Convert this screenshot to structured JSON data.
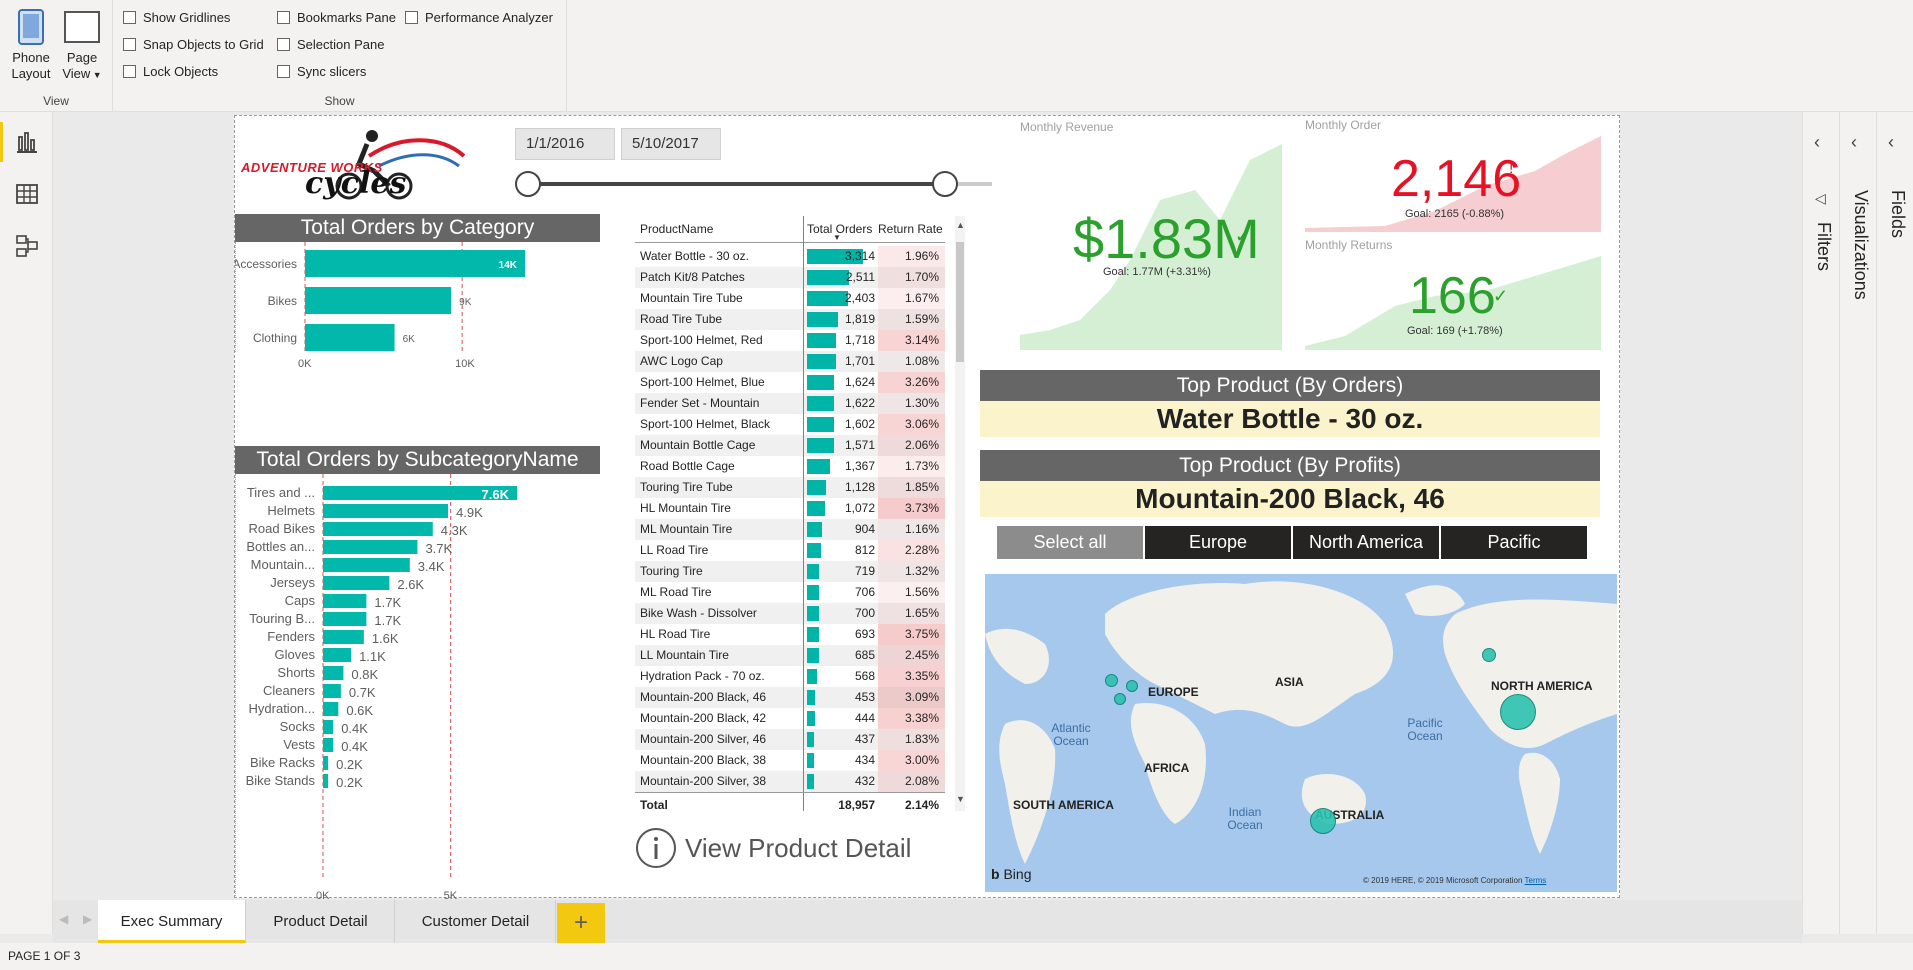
{
  "ribbon": {
    "view_group": {
      "label": "View",
      "phone_layout": "Phone\nLayout",
      "page_view": "Page\nView"
    },
    "show_group": {
      "label": "Show",
      "checkboxes": [
        "Show Gridlines",
        "Snap Objects to Grid",
        "Lock Objects",
        "Bookmarks Pane",
        "Selection Pane",
        "Sync slicers",
        "Performance Analyzer"
      ]
    }
  },
  "report": {
    "logo_text": {
      "line1": "ADVENTURE WORKS",
      "line2": "cycles"
    },
    "date_slicer": {
      "start": "1/1/2016",
      "end": "5/10/2017"
    },
    "category_chart": {
      "title": "Total Orders by Category",
      "categories": [
        "Accessories",
        "Bikes",
        "Clothing"
      ],
      "labels": [
        "14K",
        "9K",
        "6K"
      ],
      "values": [
        14000,
        9300,
        5700
      ],
      "ticks": [
        "0K",
        "10K"
      ],
      "ref_lines": [
        0,
        10000
      ],
      "xmax": 14000
    },
    "subcategory_chart": {
      "title": "Total Orders by SubcategoryName",
      "categories": [
        "Tires and ...",
        "Helmets",
        "Road Bikes",
        "Bottles an...",
        "Mountain...",
        "Jerseys",
        "Caps",
        "Touring B...",
        "Fenders",
        "Gloves",
        "Shorts",
        "Cleaners",
        "Hydration...",
        "Socks",
        "Vests",
        "Bike Racks",
        "Bike Stands"
      ],
      "labels": [
        "7.6K",
        "4.9K",
        "4.3K",
        "3.7K",
        "3.4K",
        "2.6K",
        "1.7K",
        "1.7K",
        "1.6K",
        "1.1K",
        "0.8K",
        "0.7K",
        "0.6K",
        "0.4K",
        "0.4K",
        "0.2K",
        "0.2K"
      ],
      "values": [
        7600,
        4900,
        4300,
        3700,
        3400,
        2600,
        1700,
        1700,
        1600,
        1100,
        800,
        700,
        600,
        400,
        400,
        200,
        200
      ],
      "ticks": [
        "0K",
        "5K"
      ],
      "xmax": 7600
    },
    "product_table": {
      "headers": [
        "ProductName",
        "Total Orders",
        "Return Rate"
      ],
      "rows": [
        {
          "name": "Water Bottle - 30 oz.",
          "orders": "3,314",
          "rate": "1.96%",
          "o": 3314,
          "r": 1.96
        },
        {
          "name": "Patch Kit/8 Patches",
          "orders": "2,511",
          "rate": "1.70%",
          "o": 2511,
          "r": 1.7
        },
        {
          "name": "Mountain Tire Tube",
          "orders": "2,403",
          "rate": "1.67%",
          "o": 2403,
          "r": 1.67
        },
        {
          "name": "Road Tire Tube",
          "orders": "1,819",
          "rate": "1.59%",
          "o": 1819,
          "r": 1.59
        },
        {
          "name": "Sport-100 Helmet, Red",
          "orders": "1,718",
          "rate": "3.14%",
          "o": 1718,
          "r": 3.14
        },
        {
          "name": "AWC Logo Cap",
          "orders": "1,701",
          "rate": "1.08%",
          "o": 1701,
          "r": 1.08
        },
        {
          "name": "Sport-100 Helmet, Blue",
          "orders": "1,624",
          "rate": "3.26%",
          "o": 1624,
          "r": 3.26
        },
        {
          "name": "Fender Set - Mountain",
          "orders": "1,622",
          "rate": "1.30%",
          "o": 1622,
          "r": 1.3
        },
        {
          "name": "Sport-100 Helmet, Black",
          "orders": "1,602",
          "rate": "3.06%",
          "o": 1602,
          "r": 3.06
        },
        {
          "name": "Mountain Bottle Cage",
          "orders": "1,571",
          "rate": "2.06%",
          "o": 1571,
          "r": 2.06
        },
        {
          "name": "Road Bottle Cage",
          "orders": "1,367",
          "rate": "1.73%",
          "o": 1367,
          "r": 1.73
        },
        {
          "name": "Touring Tire Tube",
          "orders": "1,128",
          "rate": "1.85%",
          "o": 1128,
          "r": 1.85
        },
        {
          "name": "HL Mountain Tire",
          "orders": "1,072",
          "rate": "3.73%",
          "o": 1072,
          "r": 3.73
        },
        {
          "name": "ML Mountain Tire",
          "orders": "904",
          "rate": "1.16%",
          "o": 904,
          "r": 1.16
        },
        {
          "name": "LL Road Tire",
          "orders": "812",
          "rate": "2.28%",
          "o": 812,
          "r": 2.28
        },
        {
          "name": "Touring Tire",
          "orders": "719",
          "rate": "1.32%",
          "o": 719,
          "r": 1.32
        },
        {
          "name": "ML Road Tire",
          "orders": "706",
          "rate": "1.56%",
          "o": 706,
          "r": 1.56
        },
        {
          "name": "Bike Wash - Dissolver",
          "orders": "700",
          "rate": "1.65%",
          "o": 700,
          "r": 1.65
        },
        {
          "name": "HL Road Tire",
          "orders": "693",
          "rate": "3.75%",
          "o": 693,
          "r": 3.75
        },
        {
          "name": "LL Mountain Tire",
          "orders": "685",
          "rate": "2.45%",
          "o": 685,
          "r": 2.45
        },
        {
          "name": "Hydration Pack - 70 oz.",
          "orders": "568",
          "rate": "3.35%",
          "o": 568,
          "r": 3.35
        },
        {
          "name": "Mountain-200 Black, 46",
          "orders": "453",
          "rate": "3.09%",
          "o": 453,
          "r": 3.09
        },
        {
          "name": "Mountain-200 Black, 42",
          "orders": "444",
          "rate": "3.38%",
          "o": 444,
          "r": 3.38
        },
        {
          "name": "Mountain-200 Silver, 46",
          "orders": "437",
          "rate": "1.83%",
          "o": 437,
          "r": 1.83
        },
        {
          "name": "Mountain-200 Black, 38",
          "orders": "434",
          "rate": "3.00%",
          "o": 434,
          "r": 3.0
        },
        {
          "name": "Mountain-200 Silver, 38",
          "orders": "432",
          "rate": "2.08%",
          "o": 432,
          "r": 2.08
        }
      ],
      "total": {
        "label": "Total",
        "orders": "18,957",
        "rate": "2.14%"
      }
    },
    "view_detail_button": "View Product Detail",
    "kpi": {
      "revenue": {
        "title": "Monthly Revenue",
        "value": "$1.83M",
        "goal": "Goal: 1.77M (+3.31%)",
        "color": "#2ca02c"
      },
      "order": {
        "title": "Monthly Order",
        "value": "2,146",
        "goal": "Goal: 2165 (-0.88%)",
        "color": "#e81123"
      },
      "returns": {
        "title": "Monthly Returns",
        "value": "166",
        "goal": "Goal: 169 (+1.78%)",
        "color": "#2ca02c"
      }
    },
    "top_orders": {
      "title": "Top Product (By Orders)",
      "value": "Water Bottle - 30 oz."
    },
    "top_profits": {
      "title": "Top Product (By Profits)",
      "value": "Mountain-200 Black, 46"
    },
    "region_slicer": [
      "Select all",
      "Europe",
      "North America",
      "Pacific"
    ],
    "map": {
      "labels": [
        "EUROPE",
        "ASIA",
        "NORTH AMERICA",
        "AFRICA",
        "SOUTH AMERICA",
        "AUSTRALIA"
      ],
      "oceans": [
        "Atlantic Ocean",
        "Pacific Ocean",
        "Indian Ocean"
      ],
      "bing": "Bing",
      "copyright": "© 2019 HERE, © 2019 Microsoft Corporation",
      "terms": "Terms"
    }
  },
  "panes": [
    "Filters",
    "Visualizations",
    "Fields"
  ],
  "tabs": [
    "Exec Summary",
    "Product Detail",
    "Customer Detail"
  ],
  "status": "PAGE 1 OF 3",
  "chart_data": [
    {
      "type": "bar",
      "title": "Total Orders by Category",
      "categories": [
        "Accessories",
        "Bikes",
        "Clothing"
      ],
      "values": [
        14000,
        9300,
        5700
      ],
      "xlim": [
        0,
        14000
      ]
    },
    {
      "type": "bar",
      "title": "Total Orders by SubcategoryName",
      "categories": [
        "Tires and ...",
        "Helmets",
        "Road Bikes",
        "Bottles an...",
        "Mountain...",
        "Jerseys",
        "Caps",
        "Touring B...",
        "Fenders",
        "Gloves",
        "Shorts",
        "Cleaners",
        "Hydration...",
        "Socks",
        "Vests",
        "Bike Racks",
        "Bike Stands"
      ],
      "values": [
        7600,
        4900,
        4300,
        3700,
        3400,
        2600,
        1700,
        1700,
        1600,
        1100,
        800,
        700,
        600,
        400,
        400,
        200,
        200
      ],
      "xlim": [
        0,
        7600
      ]
    }
  ]
}
